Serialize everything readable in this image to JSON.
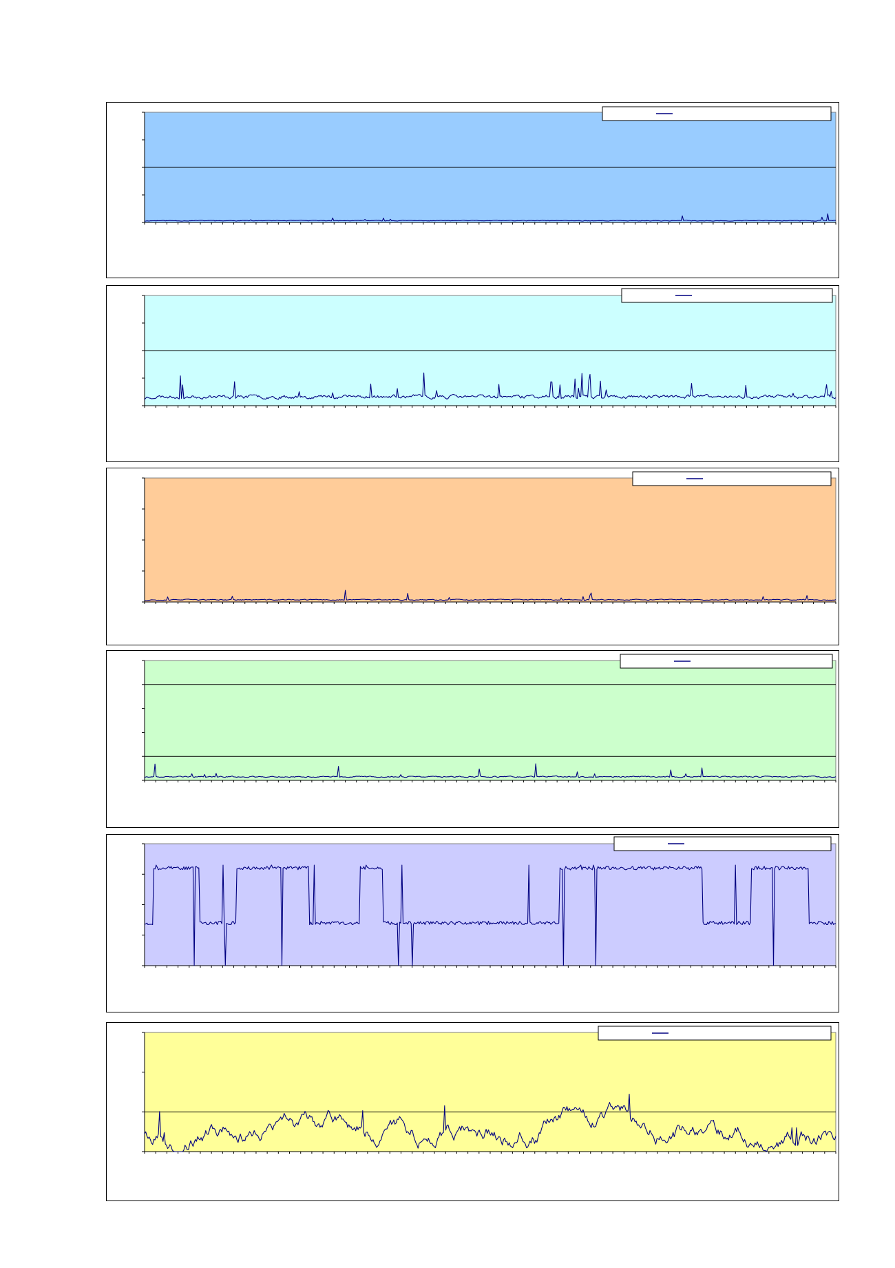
{
  "colors": {
    "line": "#000080",
    "axis": "#000000",
    "grid": "#000000"
  },
  "chart_data": [
    {
      "type": "line",
      "plot_bg": "#99ccff",
      "ylim": [
        0,
        4
      ],
      "gridlines": [
        2
      ],
      "series": [
        {
          "legend_label": "",
          "values": []
        }
      ]
    },
    {
      "type": "line",
      "plot_bg": "#ccffff",
      "ylim": [
        0,
        4
      ],
      "gridlines": [
        2
      ],
      "series": [
        {
          "legend_label": "",
          "values": []
        }
      ]
    },
    {
      "type": "line",
      "plot_bg": "#ffcc99",
      "ylim": [
        0,
        4
      ],
      "gridlines": [],
      "series": [
        {
          "legend_label": "",
          "values": []
        }
      ]
    },
    {
      "type": "line",
      "plot_bg": "#ccffcc",
      "ylim": [
        0,
        5
      ],
      "gridlines": [
        1,
        4
      ],
      "series": [
        {
          "legend_label": "",
          "values": []
        }
      ]
    },
    {
      "type": "line",
      "plot_bg": "#ccccff",
      "ylim": [
        0,
        4
      ],
      "gridlines": [],
      "series": [
        {
          "legend_label": "",
          "values": []
        }
      ]
    },
    {
      "type": "line",
      "plot_bg": "#ffff99",
      "ylim": [
        0,
        3
      ],
      "gridlines": [
        1
      ],
      "series": [
        {
          "legend_label": "",
          "values": []
        }
      ]
    }
  ]
}
